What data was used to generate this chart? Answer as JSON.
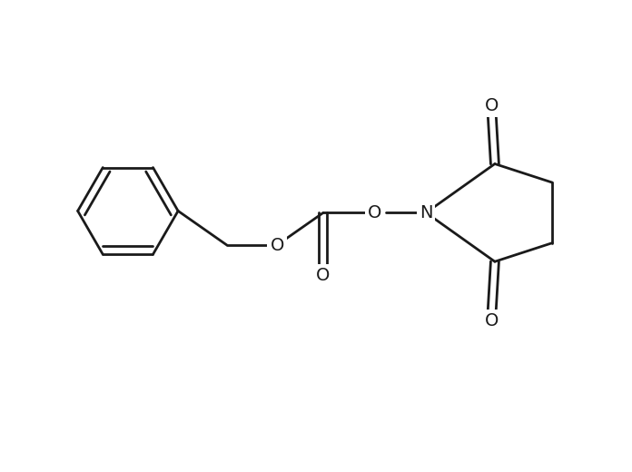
{
  "background_color": "#ffffff",
  "bond_color": "#1a1a1a",
  "line_width": 2.0,
  "font_size": 14,
  "label_color": "#1a1a1a",
  "xlim": [
    0,
    10
  ],
  "ylim": [
    0,
    7.5
  ],
  "figsize": [
    6.96,
    5.2
  ],
  "dpi": 100
}
